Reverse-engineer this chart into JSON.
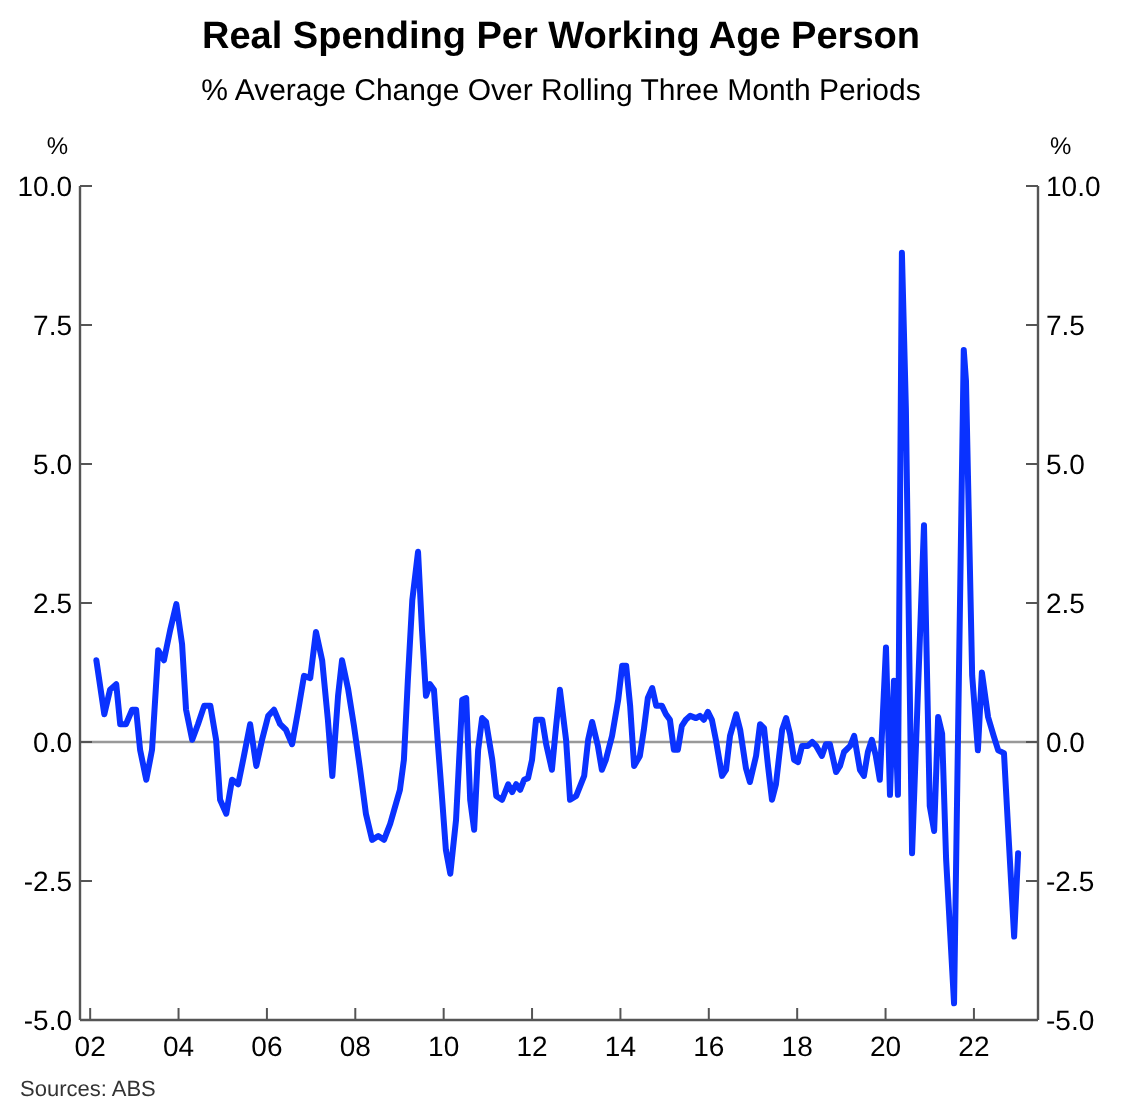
{
  "chart_data": {
    "type": "line",
    "title": "Real Spending Per Working Age Person",
    "subtitle": "% Average Change Over Rolling Three Month Periods",
    "ylabel": "%",
    "y2label": "%",
    "annotations": [
      "Sources: ABS"
    ],
    "xlim": [
      2001.77,
      2023.45
    ],
    "xticks": [
      {
        "value": 2002,
        "label": "02"
      },
      {
        "value": 2004,
        "label": "04"
      },
      {
        "value": 2006,
        "label": "06"
      },
      {
        "value": 2008,
        "label": "08"
      },
      {
        "value": 2010,
        "label": "10"
      },
      {
        "value": 2012,
        "label": "12"
      },
      {
        "value": 2014,
        "label": "14"
      },
      {
        "value": 2016,
        "label": "16"
      },
      {
        "value": 2018,
        "label": "18"
      },
      {
        "value": 2020,
        "label": "20"
      },
      {
        "value": 2022,
        "label": "22"
      }
    ],
    "ylim": [
      -5,
      10
    ],
    "yticks": [
      {
        "value": -5,
        "label": "-5.0"
      },
      {
        "value": -2.5,
        "label": "-2.5"
      },
      {
        "value": 0,
        "label": "0.0"
      },
      {
        "value": 2.5,
        "label": "2.5"
      },
      {
        "value": 5,
        "label": "5.0"
      },
      {
        "value": 7.5,
        "label": "7.5"
      },
      {
        "value": 10,
        "label": "10.0"
      }
    ],
    "y2lim": [
      -5,
      10
    ],
    "y2ticks": [
      {
        "value": -5,
        "label": "-5.0"
      },
      {
        "value": -2.5,
        "label": "-2.5"
      },
      {
        "value": 0,
        "label": "0.0"
      },
      {
        "value": 2.5,
        "label": "2.5"
      },
      {
        "value": 5,
        "label": "5.0"
      },
      {
        "value": 7.5,
        "label": "7.5"
      },
      {
        "value": 10,
        "label": "10.0"
      }
    ],
    "ref_lines": [
      {
        "axis": "y",
        "value": 0,
        "color": "#999999"
      }
    ],
    "grid": false,
    "series": [
      {
        "color": "#0a32ff",
        "x": [
          2002.14,
          2002.32,
          2002.45,
          2002.59,
          2002.68,
          2002.81,
          2002.95,
          2003.04,
          2003.13,
          2003.27,
          2003.4,
          2003.54,
          2003.67,
          2003.81,
          2003.95,
          2004.08,
          2004.17,
          2004.31,
          2004.44,
          2004.58,
          2004.72,
          2004.85,
          2004.94,
          2005.08,
          2005.21,
          2005.35,
          2005.48,
          2005.62,
          2005.76,
          2005.89,
          2006.03,
          2006.16,
          2006.3,
          2006.43,
          2006.57,
          2006.71,
          2006.84,
          2006.98,
          2007.11,
          2007.25,
          2007.38,
          2007.48,
          2007.61,
          2007.7,
          2007.84,
          2007.97,
          2008.11,
          2008.24,
          2008.38,
          2008.52,
          2008.65,
          2008.79,
          2008.88,
          2009.01,
          2009.1,
          2009.19,
          2009.29,
          2009.42,
          2009.51,
          2009.6,
          2009.69,
          2009.78,
          2009.87,
          2009.96,
          2010.05,
          2010.15,
          2010.28,
          2010.42,
          2010.51,
          2010.6,
          2010.69,
          2010.78,
          2010.87,
          2010.96,
          2011.1,
          2011.19,
          2011.32,
          2011.46,
          2011.55,
          2011.64,
          2011.73,
          2011.82,
          2011.91,
          2012.0,
          2012.09,
          2012.23,
          2012.32,
          2012.45,
          2012.54,
          2012.63,
          2012.77,
          2012.86,
          2013.0,
          2013.09,
          2013.18,
          2013.27,
          2013.36,
          2013.49,
          2013.58,
          2013.67,
          2013.81,
          2013.95,
          2014.04,
          2014.13,
          2014.22,
          2014.31,
          2014.44,
          2014.53,
          2014.62,
          2014.72,
          2014.81,
          2014.94,
          2015.03,
          2015.12,
          2015.21,
          2015.3,
          2015.39,
          2015.48,
          2015.58,
          2015.71,
          2015.8,
          2015.89,
          2015.98,
          2016.07,
          2016.16,
          2016.3,
          2016.39,
          2016.48,
          2016.62,
          2016.71,
          2016.84,
          2016.93,
          2017.07,
          2017.16,
          2017.25,
          2017.34,
          2017.43,
          2017.52,
          2017.66,
          2017.75,
          2017.84,
          2017.93,
          2018.02,
          2018.11,
          2018.24,
          2018.34,
          2018.43,
          2018.56,
          2018.65,
          2018.74,
          2018.88,
          2018.97,
          2019.06,
          2019.2,
          2019.29,
          2019.42,
          2019.51,
          2019.6,
          2019.69,
          2019.78,
          2019.87,
          2020.01,
          2020.1,
          2020.19,
          2020.28,
          2020.37,
          2020.46,
          2020.6,
          2020.87,
          2021.0,
          2021.1,
          2021.19,
          2021.28,
          2021.37,
          2021.55,
          2021.77,
          2021.82,
          2021.96,
          2022.09,
          2022.18,
          2022.32,
          2022.45,
          2022.55,
          2022.68,
          2022.77,
          2022.91,
          2023.0
        ],
        "values": [
          1.47,
          0.5,
          0.94,
          1.04,
          0.32,
          0.32,
          0.58,
          0.58,
          -0.14,
          -0.68,
          -0.14,
          1.65,
          1.47,
          2.01,
          2.48,
          1.76,
          0.58,
          0.04,
          0.32,
          0.65,
          0.65,
          0.04,
          -1.04,
          -1.29,
          -0.68,
          -0.76,
          -0.25,
          0.32,
          -0.43,
          0.04,
          0.47,
          0.58,
          0.32,
          0.22,
          -0.04,
          0.58,
          1.19,
          1.15,
          1.98,
          1.47,
          0.4,
          -0.61,
          0.83,
          1.47,
          0.94,
          0.29,
          -0.5,
          -1.29,
          -1.76,
          -1.69,
          -1.76,
          -1.47,
          -1.22,
          -0.86,
          -0.32,
          1.12,
          2.55,
          3.42,
          2.01,
          0.83,
          1.04,
          0.94,
          -0.04,
          -0.97,
          -1.94,
          -2.37,
          -1.4,
          0.76,
          0.79,
          -1.04,
          -1.58,
          -0.14,
          0.43,
          0.36,
          -0.32,
          -0.97,
          -1.04,
          -0.76,
          -0.9,
          -0.76,
          -0.86,
          -0.68,
          -0.65,
          -0.32,
          0.4,
          0.4,
          -0.04,
          -0.5,
          0.25,
          0.94,
          0.04,
          -1.04,
          -0.97,
          -0.79,
          -0.61,
          0.04,
          0.36,
          -0.07,
          -0.5,
          -0.32,
          0.11,
          0.76,
          1.37,
          1.37,
          0.65,
          -0.43,
          -0.25,
          0.22,
          0.79,
          0.97,
          0.65,
          0.65,
          0.5,
          0.4,
          -0.14,
          -0.14,
          0.29,
          0.4,
          0.47,
          0.43,
          0.47,
          0.4,
          0.54,
          0.4,
          0.04,
          -0.61,
          -0.5,
          0.11,
          0.5,
          0.22,
          -0.47,
          -0.72,
          -0.25,
          0.32,
          0.25,
          -0.43,
          -1.04,
          -0.76,
          0.22,
          0.43,
          0.14,
          -0.32,
          -0.36,
          -0.07,
          -0.07,
          0,
          -0.07,
          -0.25,
          -0.04,
          -0.04,
          -0.54,
          -0.43,
          -0.18,
          -0.07,
          0.11,
          -0.5,
          -0.61,
          -0.18,
          0.04,
          -0.25,
          -0.68,
          1.7,
          -0.95,
          1.1,
          -0.95,
          8.8,
          6.0,
          -2.0,
          3.9,
          -1.15,
          -1.6,
          0.45,
          0.15,
          -2.1,
          -4.7,
          7.05,
          6.5,
          1.2,
          -0.15,
          1.25,
          0.45,
          0.1,
          -0.15,
          -0.2,
          -1.5,
          -3.5,
          -2.0
        ]
      }
    ]
  }
}
